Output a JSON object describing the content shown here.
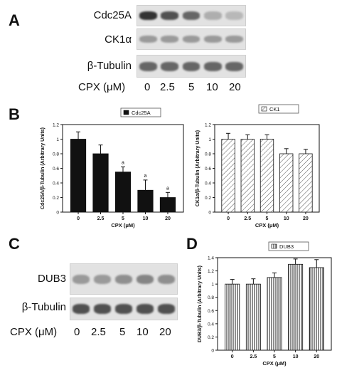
{
  "panels": {
    "A": {
      "letter": "A",
      "blots": [
        {
          "label": "Cdc25A",
          "intensities": [
            0.85,
            0.7,
            0.6,
            0.25,
            0.2
          ]
        },
        {
          "label": "CK1α",
          "intensities": [
            0.35,
            0.35,
            0.35,
            0.35,
            0.35
          ]
        },
        {
          "label": "β-Tubulin",
          "intensities": [
            0.6,
            0.6,
            0.6,
            0.6,
            0.6
          ]
        }
      ],
      "cpx_label": "CPX (μM)",
      "concentrations": [
        "0",
        "2.5",
        "5",
        "10",
        "20"
      ]
    },
    "B": {
      "letter": "B"
    },
    "C": {
      "letter": "C",
      "blots": [
        {
          "label": "DUB3",
          "intensities": [
            0.35,
            0.35,
            0.4,
            0.45,
            0.4
          ]
        },
        {
          "label": "β-Tubulin",
          "intensities": [
            0.7,
            0.7,
            0.7,
            0.7,
            0.7
          ]
        }
      ],
      "cpx_label": "CPX (μM)",
      "concentrations": [
        "0",
        "2.5",
        "5",
        "10",
        "20"
      ]
    },
    "D": {
      "letter": "D"
    }
  },
  "colors": {
    "bar_dark": "#111111",
    "band": "#1a1a1a",
    "blot_bg": "#e2e2e2"
  },
  "chart_data": [
    {
      "type": "bar",
      "categories": [
        "0",
        "2.5",
        "5",
        "10",
        "20"
      ],
      "series": [
        {
          "name": "Cdc25A",
          "values": [
            1.0,
            0.8,
            0.55,
            0.3,
            0.2
          ],
          "errors": [
            0.1,
            0.12,
            0.07,
            0.14,
            0.07
          ]
        }
      ],
      "annotations": [
        "",
        "",
        "a",
        "a",
        "a"
      ],
      "xlabel": "CPX (μM)",
      "ylabel": "Cdc25A/β-Tubulin (Arbitrary Units)",
      "ylim": [
        0,
        1.2
      ],
      "yticks": [
        "0",
        "0.2",
        "0.4",
        "0.6",
        "0.8",
        "1",
        "1.2"
      ],
      "fill": "solid",
      "legend": "top-right"
    },
    {
      "type": "bar",
      "categories": [
        "0",
        "2.5",
        "5",
        "10",
        "20"
      ],
      "series": [
        {
          "name": "CK1",
          "values": [
            1.0,
            1.0,
            1.0,
            0.8,
            0.8
          ],
          "errors": [
            0.08,
            0.06,
            0.06,
            0.07,
            0.06
          ]
        }
      ],
      "xlabel": "CPX (μM)",
      "ylabel": "CK1α/β-Tubulin (Arbitrary Units)",
      "ylim": [
        0,
        1.2
      ],
      "yticks": [
        "0",
        "0.2",
        "0.4",
        "0.6",
        "0.8",
        "1",
        "1.2"
      ],
      "fill": "diagonal-hatch",
      "legend": "top-right"
    },
    {
      "type": "bar",
      "categories": [
        "0",
        "2.5",
        "5",
        "10",
        "20"
      ],
      "series": [
        {
          "name": "DUB3",
          "values": [
            1.0,
            1.0,
            1.1,
            1.3,
            1.25
          ],
          "errors": [
            0.07,
            0.08,
            0.07,
            0.08,
            0.12
          ]
        }
      ],
      "xlabel": "CPX (μM)",
      "ylabel": "DUB3/β-Tubulin (Arbitrary Units)",
      "ylim": [
        0,
        1.4
      ],
      "yticks": [
        "0",
        "0.2",
        "0.4",
        "0.6",
        "0.8",
        "1",
        "1.2",
        "1.4"
      ],
      "fill": "vertical-hatch",
      "legend": "top-right"
    }
  ]
}
